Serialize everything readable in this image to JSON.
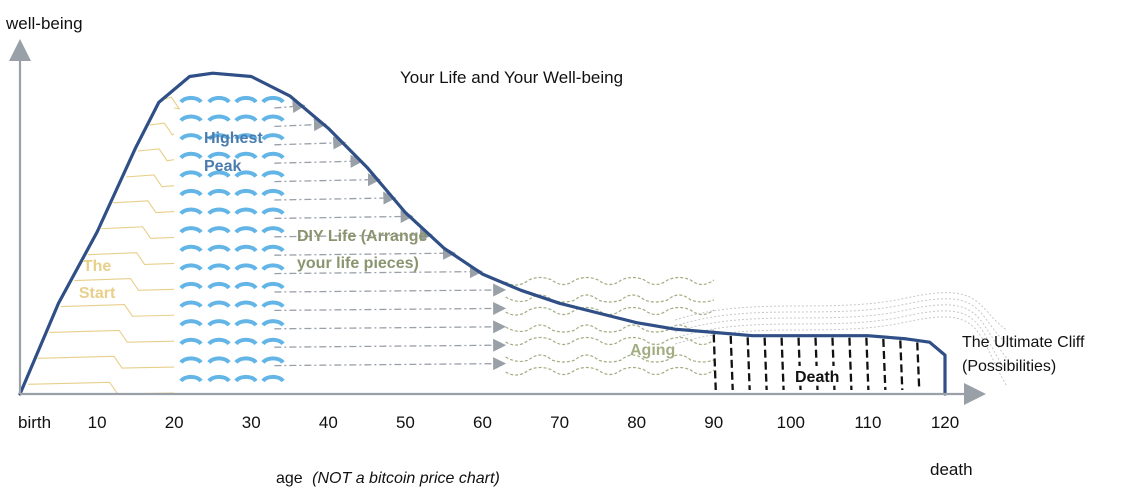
{
  "chart_data": {
    "type": "line",
    "title": "Your Life and Your Well-being",
    "ylabel": "well-being",
    "xlabel": "age",
    "xlabel_note": "(NOT a bitcoin price chart)",
    "start_label": "birth",
    "end_label": "death",
    "xlim": [
      0,
      120
    ],
    "ylim": [
      0,
      100
    ],
    "ticks": [
      10,
      20,
      30,
      40,
      50,
      60,
      70,
      80,
      90,
      100,
      110,
      120
    ],
    "curve": {
      "name": "well-being",
      "x": [
        0,
        5,
        10,
        15,
        18,
        22,
        25,
        30,
        35,
        40,
        45,
        50,
        55,
        60,
        65,
        70,
        75,
        80,
        85,
        90,
        95,
        100,
        105,
        110,
        115,
        118,
        120,
        120
      ],
      "y": [
        0,
        28,
        50,
        76,
        90,
        98,
        99,
        98,
        92,
        82,
        70,
        56,
        45,
        37,
        32,
        28,
        25,
        22,
        20,
        19,
        18,
        18,
        18,
        18,
        17,
        16,
        12,
        0
      ]
    },
    "regions": [
      {
        "name": "The Start",
        "lines": [
          "The",
          "Start"
        ],
        "from": 0,
        "to": 20,
        "color": "#e8cf8a"
      },
      {
        "name": "Highest Peak",
        "lines": [
          "Highest",
          "Peak"
        ],
        "from": 20,
        "to": 33,
        "color": "#4a7cae"
      },
      {
        "name": "DIY Life",
        "lines": [
          "DIY Life (Arrange",
          "your life pieces)"
        ],
        "from": 33,
        "to": 63,
        "color": "#8a9570"
      },
      {
        "name": "Aging",
        "lines": [
          "Aging"
        ],
        "from": 63,
        "to": 90,
        "color": "#a3ad82"
      },
      {
        "name": "Death",
        "lines": [
          "Death"
        ],
        "from": 90,
        "to": 119,
        "color": "#111111"
      }
    ],
    "annotations": [
      {
        "name": "ultimate-cliff",
        "lines": [
          "The Ultimate Cliff",
          "(Possibilities)"
        ],
        "x": 120
      }
    ]
  }
}
